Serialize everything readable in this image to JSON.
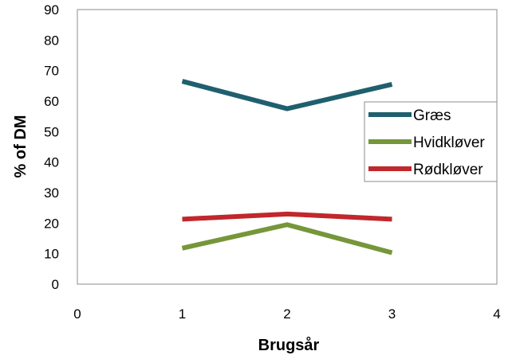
{
  "chart_data": {
    "type": "line",
    "xlabel": "Brugsår",
    "ylabel": "% of DM",
    "xlim": [
      0,
      4
    ],
    "ylim": [
      0,
      90
    ],
    "xticks": [
      0,
      1,
      2,
      3,
      4
    ],
    "yticks": [
      0,
      10,
      20,
      30,
      40,
      50,
      60,
      70,
      80,
      90
    ],
    "grid": "none",
    "legend_position": "right",
    "x": [
      1,
      2,
      3
    ],
    "series": [
      {
        "name": "Græs",
        "color": "#1f5f6e",
        "values": [
          66.5,
          57.5,
          65.5
        ]
      },
      {
        "name": "Hvidkløver",
        "color": "#76963a",
        "values": [
          11.8,
          19.5,
          10.3
        ]
      },
      {
        "name": "Rødkløver",
        "color": "#c0282b",
        "values": [
          21.3,
          23.0,
          21.3
        ]
      }
    ]
  }
}
